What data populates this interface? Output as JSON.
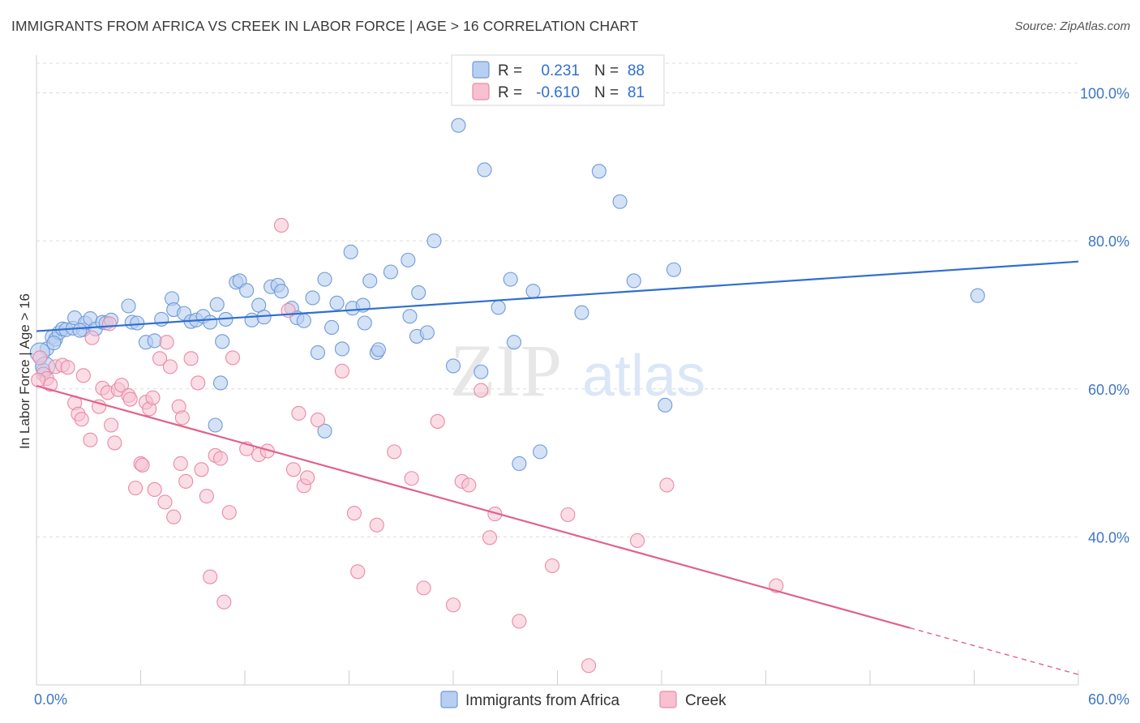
{
  "header": {
    "title": "IMMIGRANTS FROM AFRICA VS CREEK IN LABOR FORCE | AGE > 16 CORRELATION CHART",
    "source": "Source: ZipAtlas.com"
  },
  "watermark": {
    "zip": "ZIP",
    "atlas": "atlas"
  },
  "legend_top": {
    "rows": [
      {
        "r_label": "R =",
        "r_value": "0.231",
        "n_label": "N =",
        "n_value": "88"
      },
      {
        "r_label": "R =",
        "r_value": "-0.610",
        "n_label": "N =",
        "n_value": "81"
      }
    ]
  },
  "legend_bottom": {
    "items": [
      {
        "label": "Immigrants from Africa"
      },
      {
        "label": "Creek"
      }
    ]
  },
  "colors": {
    "blue_fill": "#b7cff0",
    "blue_stroke": "#6f9bd8",
    "blue_line": "#2f6fd0",
    "pink_fill": "#f7c1d2",
    "pink_stroke": "#e98aa8",
    "pink_line": "#e0628c",
    "tick_text": "#3d76c7",
    "grid": "#dcdcdc"
  },
  "chart_data": {
    "type": "scatter",
    "title": "IMMIGRANTS FROM AFRICA VS CREEK IN LABOR FORCE | AGE > 16 CORRELATION CHART",
    "xlabel": "",
    "ylabel": "In Labor Force | Age > 16",
    "xlim": [
      0,
      60
    ],
    "ylim": [
      20,
      104
    ],
    "x_tick_labels": [
      "0.0%",
      "60.0%"
    ],
    "y_ticks": [
      40,
      60,
      80,
      100
    ],
    "y_tick_labels": [
      "40.0%",
      "60.0%",
      "80.0%",
      "100.0%"
    ],
    "grid": true,
    "legend_position": "top-center",
    "series": [
      {
        "name": "Immigrants from Africa",
        "r": 0.231,
        "n": 88,
        "trend": {
          "x": [
            0,
            60
          ],
          "y": [
            67.8,
            77.2
          ],
          "dashed_from": null
        },
        "points": [
          [
            0.4,
            62.5
          ],
          [
            0.6,
            65.4
          ],
          [
            0.9,
            67.0
          ],
          [
            1.1,
            66.7
          ],
          [
            1.3,
            67.6
          ],
          [
            1.5,
            68.1
          ],
          [
            1.7,
            68.0
          ],
          [
            2.1,
            68.2
          ],
          [
            2.2,
            69.6
          ],
          [
            2.7,
            68.0
          ],
          [
            2.8,
            68.9
          ],
          [
            3.1,
            69.5
          ],
          [
            3.4,
            68.1
          ],
          [
            3.8,
            69.0
          ],
          [
            4.0,
            68.9
          ],
          [
            4.3,
            69.3
          ],
          [
            5.3,
            71.2
          ],
          [
            5.5,
            69.0
          ],
          [
            5.8,
            68.9
          ],
          [
            6.3,
            66.3
          ],
          [
            6.8,
            66.5
          ],
          [
            7.2,
            69.4
          ],
          [
            7.8,
            72.2
          ],
          [
            7.9,
            70.7
          ],
          [
            8.5,
            70.2
          ],
          [
            8.9,
            69.1
          ],
          [
            9.2,
            69.3
          ],
          [
            9.6,
            69.8
          ],
          [
            10.0,
            69.0
          ],
          [
            10.4,
            71.4
          ],
          [
            10.7,
            66.4
          ],
          [
            10.9,
            69.4
          ],
          [
            10.3,
            55.1
          ],
          [
            10.6,
            60.8
          ],
          [
            11.5,
            74.4
          ],
          [
            11.7,
            74.6
          ],
          [
            12.1,
            73.3
          ],
          [
            12.4,
            69.3
          ],
          [
            12.8,
            71.3
          ],
          [
            13.1,
            69.7
          ],
          [
            13.5,
            73.8
          ],
          [
            13.9,
            74.0
          ],
          [
            14.1,
            73.2
          ],
          [
            14.7,
            70.9
          ],
          [
            15.0,
            69.6
          ],
          [
            15.4,
            69.2
          ],
          [
            15.9,
            72.3
          ],
          [
            16.2,
            64.9
          ],
          [
            16.6,
            74.8
          ],
          [
            16.6,
            54.3
          ],
          [
            17.0,
            68.3
          ],
          [
            17.3,
            71.6
          ],
          [
            17.6,
            65.4
          ],
          [
            18.1,
            78.5
          ],
          [
            18.2,
            70.9
          ],
          [
            18.8,
            71.3
          ],
          [
            18.9,
            68.9
          ],
          [
            19.2,
            74.6
          ],
          [
            19.6,
            64.9
          ],
          [
            19.7,
            65.3
          ],
          [
            20.4,
            75.8
          ],
          [
            21.4,
            77.4
          ],
          [
            21.5,
            69.8
          ],
          [
            21.9,
            67.1
          ],
          [
            22.0,
            73.0
          ],
          [
            22.5,
            67.6
          ],
          [
            22.9,
            80.0
          ],
          [
            24.0,
            63.1
          ],
          [
            24.3,
            95.6
          ],
          [
            25.6,
            62.3
          ],
          [
            25.8,
            89.6
          ],
          [
            26.6,
            71.0
          ],
          [
            27.3,
            74.8
          ],
          [
            27.5,
            66.3
          ],
          [
            27.8,
            49.9
          ],
          [
            28.6,
            73.2
          ],
          [
            29.0,
            51.5
          ],
          [
            31.4,
            70.3
          ],
          [
            32.4,
            89.4
          ],
          [
            33.6,
            85.3
          ],
          [
            34.4,
            74.6
          ],
          [
            36.2,
            57.8
          ],
          [
            36.7,
            76.1
          ],
          [
            54.2,
            72.6
          ],
          [
            0.2,
            64.9
          ],
          [
            0.5,
            63.0
          ],
          [
            1.0,
            66.2
          ],
          [
            2.5,
            67.9
          ]
        ],
        "point_sizes_note": "two larger markers near x≈0"
      },
      {
        "name": "Creek",
        "r": -0.61,
        "n": 81,
        "trend": {
          "x": [
            0,
            60
          ],
          "y": [
            60.4,
            21.4
          ],
          "dashed_from": 50.3
        },
        "points": [
          [
            0.2,
            64.2
          ],
          [
            0.4,
            62.0
          ],
          [
            0.6,
            61.4
          ],
          [
            0.8,
            60.6
          ],
          [
            1.1,
            63.0
          ],
          [
            1.5,
            63.2
          ],
          [
            1.8,
            62.9
          ],
          [
            2.2,
            58.1
          ],
          [
            2.4,
            56.6
          ],
          [
            2.6,
            55.9
          ],
          [
            2.7,
            61.8
          ],
          [
            3.1,
            53.1
          ],
          [
            3.2,
            66.9
          ],
          [
            3.6,
            57.6
          ],
          [
            3.8,
            60.1
          ],
          [
            4.1,
            59.5
          ],
          [
            4.2,
            68.8
          ],
          [
            4.3,
            55.1
          ],
          [
            4.5,
            52.7
          ],
          [
            4.7,
            59.9
          ],
          [
            4.9,
            60.5
          ],
          [
            5.3,
            59.1
          ],
          [
            5.4,
            58.6
          ],
          [
            5.7,
            46.6
          ],
          [
            6.0,
            49.9
          ],
          [
            6.1,
            49.7
          ],
          [
            6.3,
            58.2
          ],
          [
            6.5,
            57.3
          ],
          [
            6.7,
            58.8
          ],
          [
            6.8,
            46.4
          ],
          [
            7.1,
            64.1
          ],
          [
            7.4,
            44.7
          ],
          [
            7.5,
            66.3
          ],
          [
            7.7,
            63.0
          ],
          [
            7.9,
            42.7
          ],
          [
            8.2,
            57.6
          ],
          [
            8.3,
            49.9
          ],
          [
            8.4,
            56.1
          ],
          [
            8.6,
            47.5
          ],
          [
            8.9,
            64.1
          ],
          [
            9.3,
            60.8
          ],
          [
            9.5,
            49.1
          ],
          [
            9.8,
            45.5
          ],
          [
            10.0,
            34.6
          ],
          [
            10.3,
            51.0
          ],
          [
            10.6,
            50.6
          ],
          [
            10.8,
            31.2
          ],
          [
            11.1,
            43.3
          ],
          [
            11.3,
            64.2
          ],
          [
            12.1,
            51.9
          ],
          [
            12.8,
            51.1
          ],
          [
            13.3,
            51.6
          ],
          [
            14.1,
            82.1
          ],
          [
            14.5,
            70.6
          ],
          [
            14.8,
            49.1
          ],
          [
            15.1,
            56.7
          ],
          [
            15.4,
            46.9
          ],
          [
            15.6,
            48.0
          ],
          [
            16.2,
            55.8
          ],
          [
            17.6,
            62.4
          ],
          [
            18.3,
            43.2
          ],
          [
            18.5,
            35.3
          ],
          [
            19.6,
            41.6
          ],
          [
            20.6,
            51.5
          ],
          [
            21.6,
            47.9
          ],
          [
            22.3,
            33.1
          ],
          [
            23.1,
            55.6
          ],
          [
            24.0,
            30.8
          ],
          [
            24.5,
            47.5
          ],
          [
            24.9,
            47.0
          ],
          [
            25.6,
            59.8
          ],
          [
            26.1,
            39.9
          ],
          [
            26.4,
            43.1
          ],
          [
            27.8,
            28.6
          ],
          [
            29.7,
            36.1
          ],
          [
            30.6,
            43.0
          ],
          [
            31.8,
            22.6
          ],
          [
            34.6,
            39.5
          ],
          [
            36.3,
            47.0
          ],
          [
            42.6,
            33.4
          ],
          [
            0.1,
            61.2
          ]
        ]
      }
    ]
  }
}
